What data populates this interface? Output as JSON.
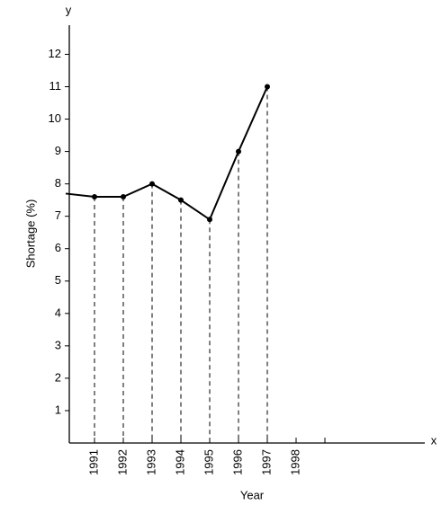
{
  "chart_data": {
    "type": "line",
    "x_label": "Year",
    "y_label": "Shortage (%)",
    "x_axis_symbol": "x",
    "y_axis_symbol": "y",
    "categories": [
      null,
      "1991",
      "1992",
      "1993",
      "1994",
      "1995",
      "1996",
      "1997",
      "1998",
      null
    ],
    "values": [
      7.7,
      7.6,
      7.6,
      8.0,
      7.5,
      6.9,
      9.0,
      11.0,
      null,
      null
    ],
    "color": "#000000",
    "ylim": [
      0,
      12.9
    ],
    "yticks": [
      1,
      2,
      3,
      4,
      5,
      6,
      7,
      8,
      9,
      10,
      11,
      12
    ],
    "grid": false
  }
}
